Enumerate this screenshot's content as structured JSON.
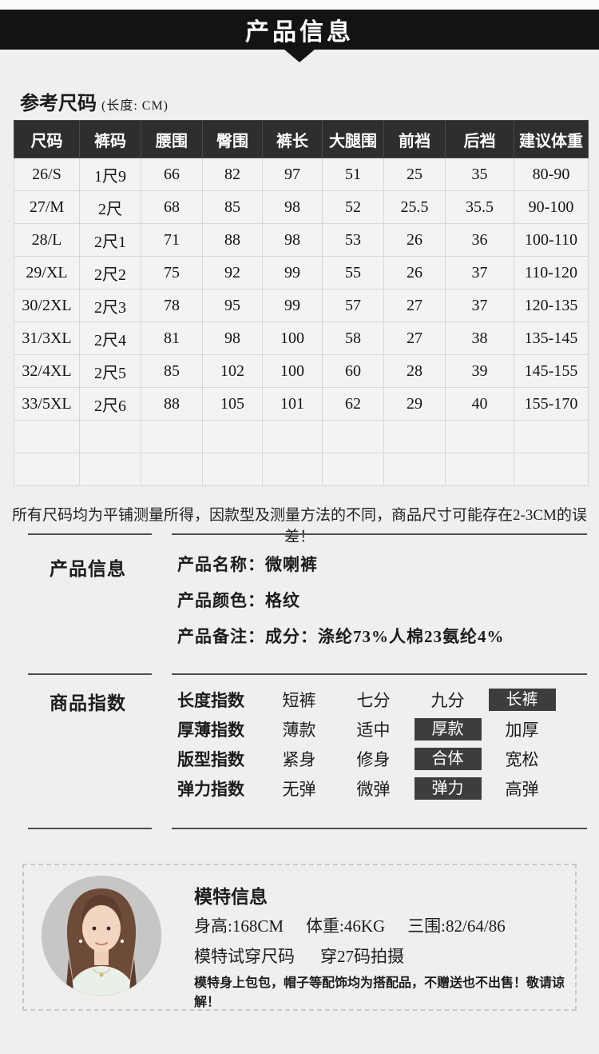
{
  "colors": {
    "page_bg": "#f0efee",
    "banner_bg": "#131313",
    "table_header_bg": "#2e2e2e",
    "table_cell_bg": "#f4f3f2",
    "table_border": "#d8d7d5",
    "chip_bg": "#3d3d3d",
    "chip_text": "#ffffff",
    "divider": "#4e4e4e"
  },
  "banner": {
    "title": "产品信息"
  },
  "size_section": {
    "heading": "参考尺码",
    "unit_note": "(长度: CM)"
  },
  "size_table": {
    "headers": [
      "尺码",
      "裤码",
      "腰围",
      "臀围",
      "裤长",
      "大腿围",
      "前裆",
      "后裆",
      "建议体重"
    ],
    "rows": [
      [
        "26/S",
        "1尺9",
        "66",
        "82",
        "97",
        "51",
        "25",
        "35",
        "80-90"
      ],
      [
        "27/M",
        "2尺",
        "68",
        "85",
        "98",
        "52",
        "25.5",
        "35.5",
        "90-100"
      ],
      [
        "28/L",
        "2尺1",
        "71",
        "88",
        "98",
        "53",
        "26",
        "36",
        "100-110"
      ],
      [
        "29/XL",
        "2尺2",
        "75",
        "92",
        "99",
        "55",
        "26",
        "37",
        "110-120"
      ],
      [
        "30/2XL",
        "2尺3",
        "78",
        "95",
        "99",
        "57",
        "27",
        "37",
        "120-135"
      ],
      [
        "31/3XL",
        "2尺4",
        "81",
        "98",
        "100",
        "58",
        "27",
        "38",
        "135-145"
      ],
      [
        "32/4XL",
        "2尺5",
        "85",
        "102",
        "100",
        "60",
        "28",
        "39",
        "145-155"
      ],
      [
        "33/5XL",
        "2尺6",
        "88",
        "105",
        "101",
        "62",
        "29",
        "40",
        "155-170"
      ]
    ],
    "empty_rows": 2
  },
  "measurement_note": "所有尺码均为平铺测量所得，因款型及测量方法的不同，商品尺寸可能存在2-3CM的误差！",
  "product_info": {
    "label": "产品信息",
    "items": [
      {
        "label": "产品名称：",
        "value": "微喇裤"
      },
      {
        "label": "产品颜色：",
        "value": "格纹"
      },
      {
        "label": "产品备注：",
        "value": "成分：涤纶73%人棉23氨纶4%"
      }
    ]
  },
  "product_index": {
    "label": "商品指数",
    "rows": [
      {
        "label": "长度指数",
        "options": [
          "短裤",
          "七分",
          "九分",
          "长裤"
        ],
        "selected": 3
      },
      {
        "label": "厚薄指数",
        "options": [
          "薄款",
          "适中",
          "厚款",
          "加厚"
        ],
        "selected": 2
      },
      {
        "label": "版型指数",
        "options": [
          "紧身",
          "修身",
          "合体",
          "宽松"
        ],
        "selected": 2
      },
      {
        "label": "弹力指数",
        "options": [
          "无弹",
          "微弹",
          "弹力",
          "高弹"
        ],
        "selected": 2
      }
    ]
  },
  "model_info": {
    "title": "模特信息",
    "measurements": [
      "身高:168CM",
      "体重:46KG",
      "三围:82/64/86"
    ],
    "fit": [
      "模特试穿尺码",
      "穿27码拍摄"
    ],
    "note": "模特身上包包，帽子等配饰均为搭配品，不赠送也不出售！敬请谅解！",
    "photo": "model-portrait"
  }
}
